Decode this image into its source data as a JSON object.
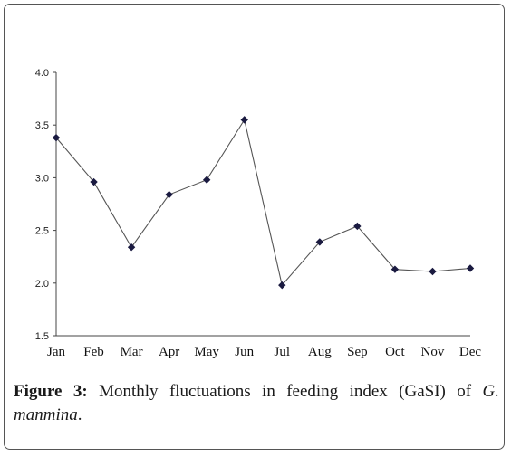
{
  "chart_data": {
    "type": "line",
    "categories": [
      "Jan",
      "Feb",
      "Mar",
      "Apr",
      "May",
      "Jun",
      "Jul",
      "Aug",
      "Sep",
      "Oct",
      "Nov",
      "Dec"
    ],
    "series": [
      {
        "values": [
          3.38,
          2.96,
          2.34,
          2.84,
          2.98,
          3.55,
          1.98,
          2.39,
          2.54,
          2.13,
          2.11,
          2.14
        ],
        "color": "#555555",
        "marker_color": "#1a1a40",
        "marker": "diamond"
      }
    ],
    "yticks": [
      "1.5",
      "2.0",
      "2.5",
      "3.0",
      "3.5",
      "4.0"
    ],
    "ylim": [
      1.5,
      4.0
    ],
    "grid": false,
    "legend": "none"
  },
  "caption": {
    "label": "Figure 3:",
    "text": " Monthly fluctuations in feeding index (GaSI) of ",
    "species": "G. manmina",
    "end": "."
  }
}
